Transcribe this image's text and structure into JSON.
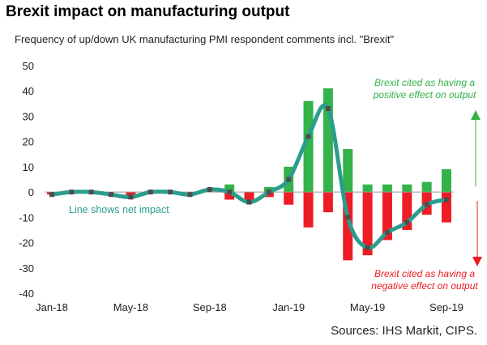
{
  "header": {
    "title": "Brexit impact on manufacturing output",
    "subtitle": "Frequency of up/down UK manufacturing PMI respondent comments incl. \"Brexit\""
  },
  "footer": {
    "source": "Sources: IHS Markit, CIPS."
  },
  "colors": {
    "positive": "#33b34a",
    "negative": "#ee1c25",
    "net_line": "#2a9d8f",
    "marker": "#4d4d4d"
  },
  "chart_data": {
    "type": "bar",
    "title": "Brexit impact on manufacturing output",
    "subtitle": "Frequency of up/down UK manufacturing PMI respondent comments incl. \"Brexit\"",
    "categories": [
      "Jan-18",
      "Feb-18",
      "Mar-18",
      "Apr-18",
      "May-18",
      "Jun-18",
      "Jul-18",
      "Aug-18",
      "Sep-18",
      "Oct-18",
      "Nov-18",
      "Dec-18",
      "Jan-19",
      "Feb-19",
      "Mar-19",
      "Apr-19",
      "May-19",
      "Jun-19",
      "Jul-19",
      "Aug-19",
      "Sep-19"
    ],
    "x_tick_labels": [
      "Jan-18",
      "May-18",
      "Sep-18",
      "Jan-19",
      "May-19",
      "Sep-19"
    ],
    "ylim": [
      -40,
      50
    ],
    "y_ticks": [
      50,
      40,
      30,
      20,
      10,
      0,
      -10,
      -20,
      -30,
      -40
    ],
    "grid": false,
    "series": [
      {
        "kind": "bar",
        "values": [
          0,
          0,
          0,
          0,
          0,
          0,
          0,
          0,
          0,
          3,
          0,
          2,
          10,
          36,
          41,
          17,
          3,
          3,
          3,
          4,
          9
        ]
      },
      {
        "kind": "bar",
        "values": [
          -1,
          0,
          0,
          0,
          -2,
          0,
          0,
          0,
          0,
          -3,
          -4,
          -2,
          -5,
          -14,
          -8,
          -27,
          -25,
          -19,
          -15,
          -9,
          -12
        ]
      },
      {
        "kind": "line",
        "values": [
          -1,
          0,
          0,
          -1,
          -2,
          0,
          0,
          -1,
          1,
          0,
          -4,
          0,
          5,
          22,
          33,
          -10,
          -22,
          -16,
          -12,
          -5,
          -3
        ]
      }
    ],
    "annotations": {
      "positive_label": [
        "Brexit cited as having a",
        "positive effect on output"
      ],
      "negative_label": [
        "Brexit cited as having a",
        "negative effect on output"
      ],
      "net_label": "Line shows net impact"
    }
  }
}
